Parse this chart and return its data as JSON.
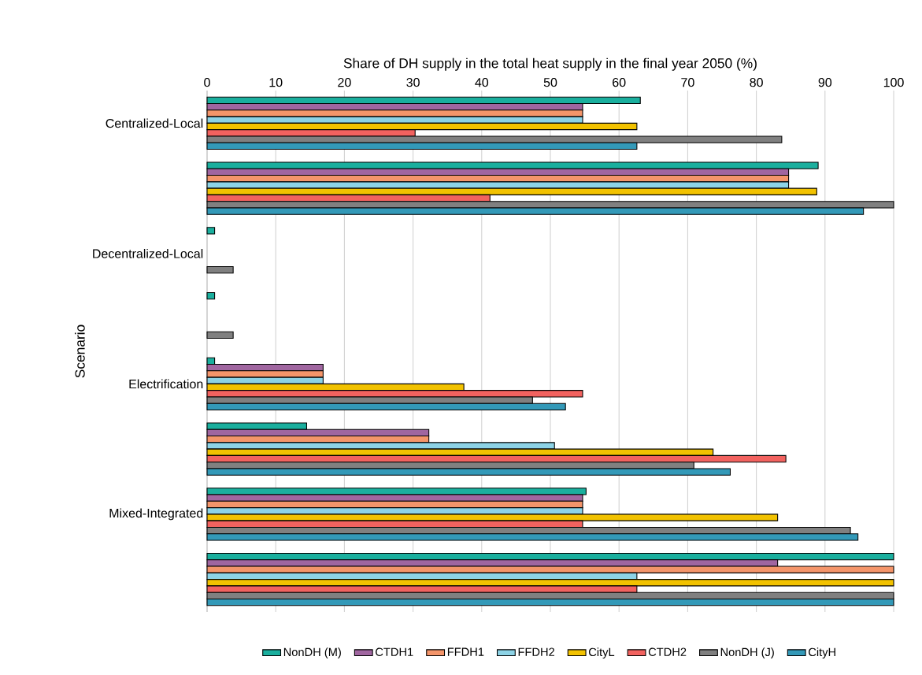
{
  "chart_data": {
    "type": "bar",
    "orientation": "horizontal",
    "xlabel": "Share of DH supply in the total heat supply in the final year 2050 (%)",
    "ylabel": "Scenario",
    "categories": [
      "Centralized-Local",
      null,
      "Decentralized-Local",
      null,
      "Electrification",
      null,
      "Mixed-Integrated",
      null
    ],
    "series": [
      {
        "name": "NonDH (M)",
        "color": "#1aaf9e",
        "values": [
          63.1,
          89.0,
          1.1,
          1.1,
          1.1,
          14.5,
          55.2,
          100
        ]
      },
      {
        "name": "CTDH1",
        "color": "#a066a0",
        "values": [
          54.7,
          84.7,
          null,
          null,
          16.9,
          32.3,
          54.7,
          83.1
        ]
      },
      {
        "name": "FFDH1",
        "color": "#f4956a",
        "values": [
          54.7,
          84.7,
          null,
          null,
          16.9,
          32.3,
          54.7,
          100
        ]
      },
      {
        "name": "FFDH2",
        "color": "#8dd3e6",
        "values": [
          54.7,
          84.7,
          null,
          null,
          16.9,
          50.6,
          54.7,
          62.6
        ]
      },
      {
        "name": "CityL",
        "color": "#f2c200",
        "values": [
          62.6,
          88.8,
          null,
          null,
          37.4,
          73.7,
          83.1,
          100
        ]
      },
      {
        "name": "CTDH2",
        "color": "#f2625f",
        "values": [
          30.3,
          41.2,
          null,
          null,
          54.7,
          84.3,
          54.7,
          62.6
        ]
      },
      {
        "name": "NonDH (J)",
        "color": "#808080",
        "values": [
          83.7,
          100,
          3.8,
          3.8,
          47.4,
          70.9,
          93.7,
          100
        ]
      },
      {
        "name": "CityH",
        "color": "#3399b8",
        "values": [
          62.6,
          95.6,
          null,
          null,
          52.2,
          76.2,
          94.8,
          100
        ]
      }
    ],
    "xlim": [
      0,
      100
    ],
    "xticks": [
      0,
      10,
      20,
      30,
      40,
      50,
      60,
      70,
      80,
      90,
      100
    ],
    "grid": "x",
    "legend": "bottom"
  }
}
